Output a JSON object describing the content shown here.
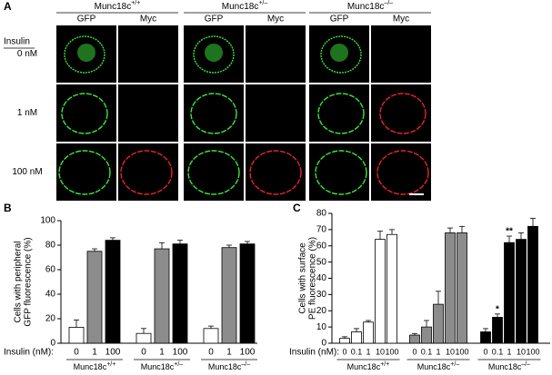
{
  "panel_a": {
    "label": "A",
    "insulin_label": "Insulin",
    "rows": [
      "0 nM",
      "1 nM",
      "100 nM"
    ],
    "genotypes": [
      {
        "name": "Munc18c",
        "sup": "+/+",
        "channels": [
          "GFP",
          "Myc"
        ]
      },
      {
        "name": "Munc18c",
        "sup": "+/–",
        "channels": [
          "GFP",
          "Myc"
        ]
      },
      {
        "name": "Munc18c",
        "sup": "–/–",
        "channels": [
          "GFP",
          "Myc"
        ]
      }
    ]
  },
  "chart_data": [
    {
      "panel": "B",
      "type": "bar",
      "y_label": [
        "Cells with peripheral",
        "GFP fluorescence (%)"
      ],
      "x_label": "Insulin (nM):",
      "ylim": [
        0,
        100
      ],
      "yticks": [
        0,
        20,
        40,
        60,
        80,
        100
      ],
      "bar_colors": [
        "#ffffff",
        "#8c8c8c",
        "#000000"
      ],
      "groups": [
        {
          "name": "Munc18c",
          "sup": "+/+",
          "categories": [
            "0",
            "1",
            "100"
          ],
          "values": [
            13,
            75,
            84
          ],
          "errors": [
            6,
            2,
            2
          ]
        },
        {
          "name": "Munc18c",
          "sup": "+/–",
          "categories": [
            "0",
            "1",
            "100"
          ],
          "values": [
            8,
            77,
            81
          ],
          "errors": [
            4,
            5,
            3
          ]
        },
        {
          "name": "Munc18c",
          "sup": "–/–",
          "categories": [
            "0",
            "1",
            "100"
          ],
          "values": [
            12,
            78,
            81
          ],
          "errors": [
            2,
            2,
            2
          ]
        }
      ]
    },
    {
      "panel": "C",
      "type": "bar",
      "y_label": [
        "Cells with surface",
        "PE fluorescence (%)"
      ],
      "x_label": "Insulin (nM):",
      "ylim": [
        0,
        80
      ],
      "yticks": [
        0,
        10,
        20,
        30,
        40,
        50,
        60,
        70,
        80
      ],
      "groups": [
        {
          "name": "Munc18c",
          "sup": "+/+",
          "color": "#ffffff",
          "categories": [
            "0",
            "0.1",
            "1",
            "10",
            "100"
          ],
          "values": [
            3,
            7,
            13,
            64,
            67
          ],
          "errors": [
            1,
            2,
            1,
            5,
            3
          ]
        },
        {
          "name": "Munc18c",
          "sup": "+/–",
          "color": "#8c8c8c",
          "categories": [
            "0",
            "0.1",
            "1",
            "10",
            "100"
          ],
          "values": [
            5,
            10,
            24,
            68,
            68
          ],
          "errors": [
            1,
            4,
            8,
            3,
            4
          ]
        },
        {
          "name": "Munc18c",
          "sup": "–/–",
          "color": "#000000",
          "categories": [
            "0",
            "0.1",
            "1",
            "10",
            "100"
          ],
          "values": [
            7,
            16,
            62,
            64,
            72
          ],
          "errors": [
            2,
            2,
            4,
            4,
            5
          ],
          "annotations": [
            null,
            "*",
            "**",
            null,
            null
          ]
        }
      ]
    }
  ]
}
